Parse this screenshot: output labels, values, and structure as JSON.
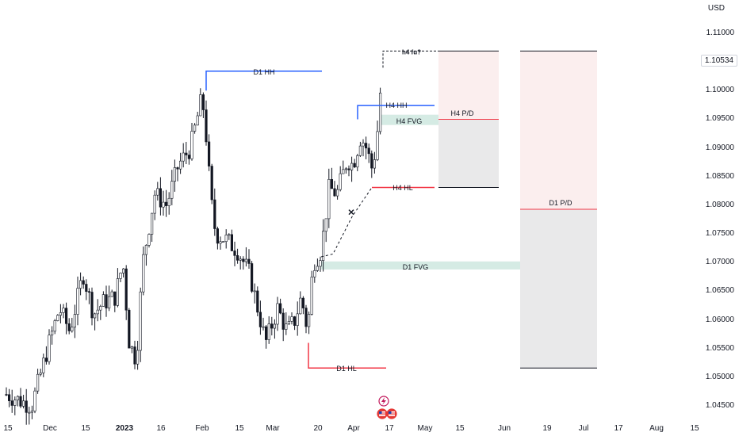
{
  "currency": "USD",
  "last_price": "1.10534",
  "y_axis_ticks": [
    "1.11000",
    "1.10500",
    "1.10000",
    "1.09500",
    "1.09000",
    "1.08500",
    "1.08000",
    "1.07500",
    "1.07000",
    "1.06500",
    "1.06000",
    "1.05500",
    "1.05000",
    "1.04500"
  ],
  "x_axis_ticks": [
    {
      "label": "15",
      "bold": false
    },
    {
      "label": "Dec",
      "bold": false
    },
    {
      "label": "15",
      "bold": false
    },
    {
      "label": "2023",
      "bold": true
    },
    {
      "label": "16",
      "bold": false
    },
    {
      "label": "Feb",
      "bold": false
    },
    {
      "label": "15",
      "bold": false
    },
    {
      "label": "Mar",
      "bold": false
    },
    {
      "label": "20",
      "bold": false
    },
    {
      "label": "Apr",
      "bold": false
    },
    {
      "label": "17",
      "bold": false
    },
    {
      "label": "May",
      "bold": false
    },
    {
      "label": "15",
      "bold": false
    },
    {
      "label": "Jun",
      "bold": false
    },
    {
      "label": "19",
      "bold": false
    },
    {
      "label": "Jul",
      "bold": false
    },
    {
      "label": "17",
      "bold": false
    },
    {
      "label": "Aug",
      "bold": false
    },
    {
      "label": "15",
      "bold": false
    }
  ],
  "annotations": {
    "d1_hh": "D1 HH",
    "h4_hh": "H4 HH",
    "h4_fvg": "H4 FVG",
    "h4_pd": "H4 P/D",
    "h4_hl": "H4 HL",
    "d1_fvg": "D1 FVG",
    "d1_pd": "D1 P/D",
    "d1_hl": "D1 HL",
    "h4_fu": "h4 fu?"
  },
  "icons": [
    "lightning-event-icon",
    "us-flag-event-icon",
    "us-flag-event-icon-2"
  ],
  "colors": {
    "candle_up": "#ffffff",
    "candle_down": "#131722",
    "wick": "#131722",
    "high_line": "#2962ff",
    "low_line": "#f23645",
    "fvg_fill": "#d5ebe4",
    "premium_fill": "#fbeeee",
    "discount_fill": "#e9e9ea"
  },
  "chart_data": {
    "type": "candlestick",
    "symbol_currency": "USD",
    "y_range": [
      1.043,
      1.113
    ],
    "levels": {
      "d1_hh": 1.1034,
      "h4_hh": 1.0974,
      "h4_hl": 1.0831,
      "d1_hl": 1.0516,
      "h4_fvg": [
        1.094,
        1.0958
      ],
      "d1_fvg": [
        1.0688,
        1.0702
      ],
      "h4_pd_mid": 1.095,
      "d1_pd_mid": 1.0793,
      "h4_fu_top": 1.1069
    },
    "candles": []
  }
}
